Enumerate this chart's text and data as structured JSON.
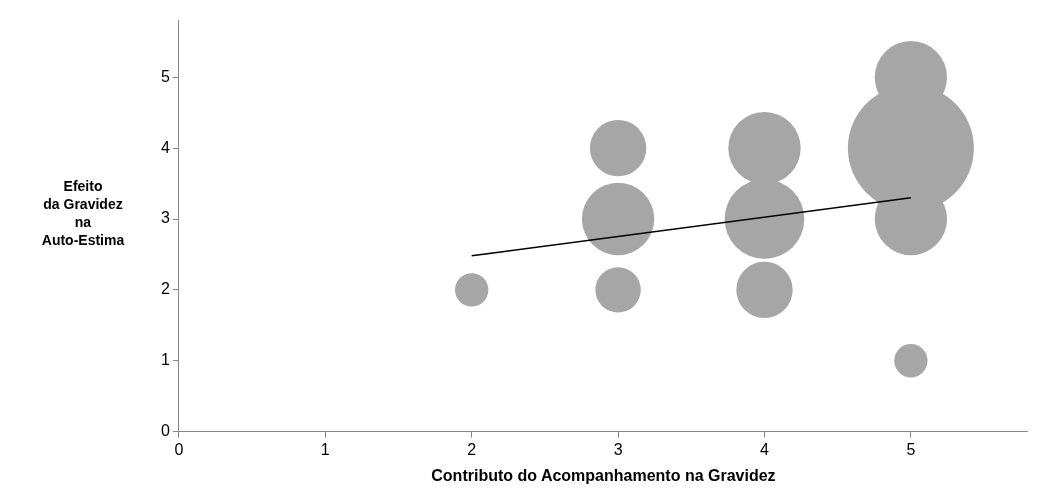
{
  "chart_data": {
    "type": "bubble",
    "xlabel": "Contributo do Acompanhamento na Gravidez",
    "ylabel": "Efeito\nda Gravidez\nna\nAuto-Estima",
    "xlim": [
      0,
      5.8
    ],
    "xticks": [
      0,
      1,
      2,
      3,
      4,
      5
    ],
    "ylim": [
      0,
      5.8
    ],
    "yticks": [
      0,
      1,
      2,
      3,
      4,
      5
    ],
    "grid": false,
    "series": [
      {
        "color": "#a6a6a6",
        "x": [
          2,
          3,
          3,
          3,
          4,
          4,
          4,
          5,
          5,
          5,
          5
        ],
        "values": [
          2,
          2,
          3,
          4,
          2,
          3,
          4,
          1,
          3,
          4,
          5
        ],
        "sizes": [
          0.07,
          0.13,
          0.33,
          0.2,
          0.2,
          0.4,
          0.33,
          0.07,
          0.33,
          1,
          0.33
        ]
      },
      {
        "type": "line",
        "color": "#000000",
        "x": [
          2,
          5
        ],
        "values": [
          2.48,
          3.3
        ]
      }
    ]
  }
}
